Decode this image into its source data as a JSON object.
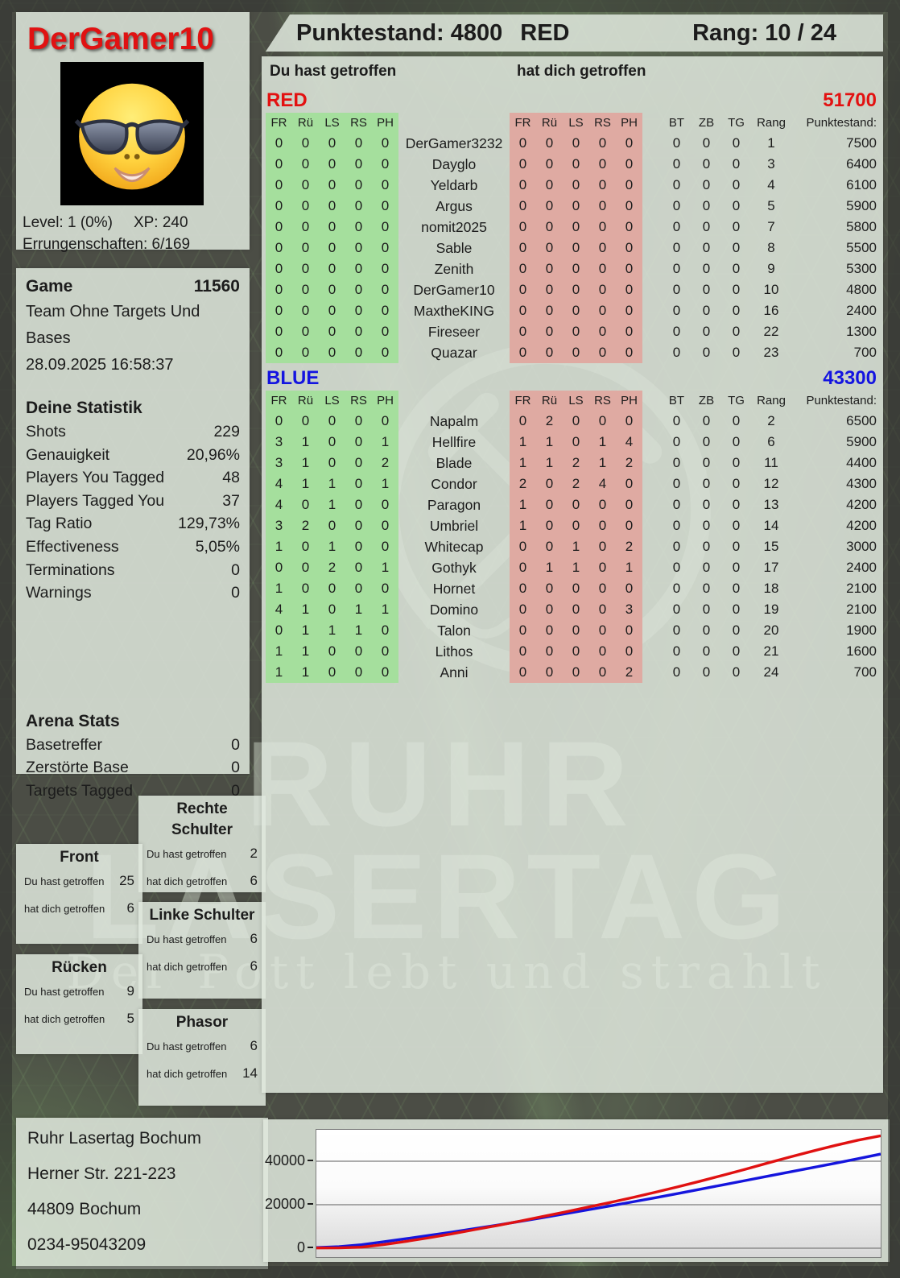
{
  "header": {
    "player_name": "DerGamer10",
    "points_label": "Punktestand: 4800",
    "team_label": "RED",
    "rank_label": "Rang: 10 / 24"
  },
  "profile": {
    "avatar_icon": "sunglasses-smiley-icon",
    "level_label": "Level: 1 (0%)",
    "xp_label": "XP: 240",
    "achievements_label": "Errungenschaften: 6/169"
  },
  "game_info": {
    "title": "Game",
    "number": "11560",
    "mode": "Team Ohne Targets Und Bases",
    "datetime": "28.09.2025 16:58:37"
  },
  "your_stats": {
    "title": "Deine Statistik",
    "rows": [
      {
        "label": "Shots",
        "value": "229"
      },
      {
        "label": "Genauigkeit",
        "value": "20,96%"
      },
      {
        "label": "Players You Tagged",
        "value": "48"
      },
      {
        "label": "Players Tagged You",
        "value": "37"
      },
      {
        "label": "Tag Ratio",
        "value": "129,73%"
      },
      {
        "label": "Effectiveness",
        "value": "5,05%"
      },
      {
        "label": "Terminations",
        "value": "0"
      },
      {
        "label": "Warnings",
        "value": "0"
      }
    ]
  },
  "arena_stats": {
    "title": "Arena Stats",
    "rows": [
      {
        "label": "Basetreffer",
        "value": "0"
      },
      {
        "label": "Zerstörte Base",
        "value": "0"
      },
      {
        "label": "Targets Tagged",
        "value": "0"
      }
    ]
  },
  "body_parts": {
    "hit_label": "Du hast getroffen",
    "got_label": "hat dich getroffen",
    "front": {
      "title": "Front",
      "hit": "25",
      "got": "6"
    },
    "ruecken": {
      "title": "Rücken",
      "hit": "9",
      "got": "5"
    },
    "rechte_schulter": {
      "title": "Rechte Schulter",
      "hit": "2",
      "got": "6"
    },
    "linke_schulter": {
      "title": "Linke Schulter",
      "hit": "6",
      "got": "6"
    },
    "phasor": {
      "title": "Phasor",
      "hit": "6",
      "got": "14"
    }
  },
  "scoreboard": {
    "you_hit_label": "Du hast getroffen",
    "hit_you_label": "hat dich getroffen",
    "hit_columns": [
      "FR",
      "Rü",
      "LS",
      "RS",
      "PH"
    ],
    "extra_columns": [
      "BT",
      "ZB",
      "TG",
      "Rang",
      "Punktestand:"
    ],
    "teams": [
      {
        "name": "RED",
        "color": "#e31111",
        "total": "51700",
        "players": [
          {
            "you_hit": [
              0,
              0,
              0,
              0,
              0
            ],
            "name": "DerGamer3232",
            "hit_you": [
              0,
              0,
              0,
              0,
              0
            ],
            "bt": 0,
            "zb": 0,
            "tg": 0,
            "rank": 1,
            "score": 7500
          },
          {
            "you_hit": [
              0,
              0,
              0,
              0,
              0
            ],
            "name": "Dayglo",
            "hit_you": [
              0,
              0,
              0,
              0,
              0
            ],
            "bt": 0,
            "zb": 0,
            "tg": 0,
            "rank": 3,
            "score": 6400
          },
          {
            "you_hit": [
              0,
              0,
              0,
              0,
              0
            ],
            "name": "Yeldarb",
            "hit_you": [
              0,
              0,
              0,
              0,
              0
            ],
            "bt": 0,
            "zb": 0,
            "tg": 0,
            "rank": 4,
            "score": 6100
          },
          {
            "you_hit": [
              0,
              0,
              0,
              0,
              0
            ],
            "name": "Argus",
            "hit_you": [
              0,
              0,
              0,
              0,
              0
            ],
            "bt": 0,
            "zb": 0,
            "tg": 0,
            "rank": 5,
            "score": 5900
          },
          {
            "you_hit": [
              0,
              0,
              0,
              0,
              0
            ],
            "name": "nomit2025",
            "hit_you": [
              0,
              0,
              0,
              0,
              0
            ],
            "bt": 0,
            "zb": 0,
            "tg": 0,
            "rank": 7,
            "score": 5800
          },
          {
            "you_hit": [
              0,
              0,
              0,
              0,
              0
            ],
            "name": "Sable",
            "hit_you": [
              0,
              0,
              0,
              0,
              0
            ],
            "bt": 0,
            "zb": 0,
            "tg": 0,
            "rank": 8,
            "score": 5500
          },
          {
            "you_hit": [
              0,
              0,
              0,
              0,
              0
            ],
            "name": "Zenith",
            "hit_you": [
              0,
              0,
              0,
              0,
              0
            ],
            "bt": 0,
            "zb": 0,
            "tg": 0,
            "rank": 9,
            "score": 5300
          },
          {
            "you_hit": [
              0,
              0,
              0,
              0,
              0
            ],
            "name": "DerGamer10",
            "hit_you": [
              0,
              0,
              0,
              0,
              0
            ],
            "bt": 0,
            "zb": 0,
            "tg": 0,
            "rank": 10,
            "score": 4800
          },
          {
            "you_hit": [
              0,
              0,
              0,
              0,
              0
            ],
            "name": "MaxtheKING",
            "hit_you": [
              0,
              0,
              0,
              0,
              0
            ],
            "bt": 0,
            "zb": 0,
            "tg": 0,
            "rank": 16,
            "score": 2400
          },
          {
            "you_hit": [
              0,
              0,
              0,
              0,
              0
            ],
            "name": "Fireseer",
            "hit_you": [
              0,
              0,
              0,
              0,
              0
            ],
            "bt": 0,
            "zb": 0,
            "tg": 0,
            "rank": 22,
            "score": 1300
          },
          {
            "you_hit": [
              0,
              0,
              0,
              0,
              0
            ],
            "name": "Quazar",
            "hit_you": [
              0,
              0,
              0,
              0,
              0
            ],
            "bt": 0,
            "zb": 0,
            "tg": 0,
            "rank": 23,
            "score": 700
          }
        ]
      },
      {
        "name": "BLUE",
        "color": "#1414e0",
        "total": "43300",
        "players": [
          {
            "you_hit": [
              0,
              0,
              0,
              0,
              0
            ],
            "name": "Napalm",
            "hit_you": [
              0,
              2,
              0,
              0,
              0
            ],
            "bt": 0,
            "zb": 0,
            "tg": 0,
            "rank": 2,
            "score": 6500
          },
          {
            "you_hit": [
              3,
              1,
              0,
              0,
              1
            ],
            "name": "Hellfire",
            "hit_you": [
              1,
              1,
              0,
              1,
              4
            ],
            "bt": 0,
            "zb": 0,
            "tg": 0,
            "rank": 6,
            "score": 5900
          },
          {
            "you_hit": [
              3,
              1,
              0,
              0,
              2
            ],
            "name": "Blade",
            "hit_you": [
              1,
              1,
              2,
              1,
              2
            ],
            "bt": 0,
            "zb": 0,
            "tg": 0,
            "rank": 11,
            "score": 4400
          },
          {
            "you_hit": [
              4,
              1,
              1,
              0,
              1
            ],
            "name": "Condor",
            "hit_you": [
              2,
              0,
              2,
              4,
              0
            ],
            "bt": 0,
            "zb": 0,
            "tg": 0,
            "rank": 12,
            "score": 4300
          },
          {
            "you_hit": [
              4,
              0,
              1,
              0,
              0
            ],
            "name": "Paragon",
            "hit_you": [
              1,
              0,
              0,
              0,
              0
            ],
            "bt": 0,
            "zb": 0,
            "tg": 0,
            "rank": 13,
            "score": 4200
          },
          {
            "you_hit": [
              3,
              2,
              0,
              0,
              0
            ],
            "name": "Umbriel",
            "hit_you": [
              1,
              0,
              0,
              0,
              0
            ],
            "bt": 0,
            "zb": 0,
            "tg": 0,
            "rank": 14,
            "score": 4200
          },
          {
            "you_hit": [
              1,
              0,
              1,
              0,
              0
            ],
            "name": "Whitecap",
            "hit_you": [
              0,
              0,
              1,
              0,
              2
            ],
            "bt": 0,
            "zb": 0,
            "tg": 0,
            "rank": 15,
            "score": 3000
          },
          {
            "you_hit": [
              0,
              0,
              2,
              0,
              1
            ],
            "name": "Gothyk",
            "hit_you": [
              0,
              1,
              1,
              0,
              1
            ],
            "bt": 0,
            "zb": 0,
            "tg": 0,
            "rank": 17,
            "score": 2400
          },
          {
            "you_hit": [
              1,
              0,
              0,
              0,
              0
            ],
            "name": "Hornet",
            "hit_you": [
              0,
              0,
              0,
              0,
              0
            ],
            "bt": 0,
            "zb": 0,
            "tg": 0,
            "rank": 18,
            "score": 2100
          },
          {
            "you_hit": [
              4,
              1,
              0,
              1,
              1
            ],
            "name": "Domino",
            "hit_you": [
              0,
              0,
              0,
              0,
              3
            ],
            "bt": 0,
            "zb": 0,
            "tg": 0,
            "rank": 19,
            "score": 2100
          },
          {
            "you_hit": [
              0,
              1,
              1,
              1,
              0
            ],
            "name": "Talon",
            "hit_you": [
              0,
              0,
              0,
              0,
              0
            ],
            "bt": 0,
            "zb": 0,
            "tg": 0,
            "rank": 20,
            "score": 1900
          },
          {
            "you_hit": [
              1,
              1,
              0,
              0,
              0
            ],
            "name": "Lithos",
            "hit_you": [
              0,
              0,
              0,
              0,
              0
            ],
            "bt": 0,
            "zb": 0,
            "tg": 0,
            "rank": 21,
            "score": 1600
          },
          {
            "you_hit": [
              1,
              1,
              0,
              0,
              0
            ],
            "name": "Anni",
            "hit_you": [
              0,
              0,
              0,
              0,
              2
            ],
            "bt": 0,
            "zb": 0,
            "tg": 0,
            "rank": 24,
            "score": 700
          }
        ]
      }
    ]
  },
  "address": {
    "line1": "Ruhr Lasertag Bochum",
    "line2": "Herner Str. 221-223",
    "line3": "44809 Bochum",
    "line4": "0234-95043209"
  },
  "watermark": {
    "title_line1": "RUHR",
    "title_line2": "LASERTAG",
    "slogan": "Der Pott lebt und strahlt",
    "logo_icon": "crossed-hammer-pick-icon"
  },
  "colors": {
    "red": "#e31111",
    "blue": "#1414e0",
    "green_cell": "#a5df9d",
    "pink_cell": "#dfaaa2"
  },
  "chart_data": {
    "type": "line",
    "title": "",
    "xlabel": "",
    "ylabel": "",
    "x_note": "cumulative team score over game time, evenly spaced samples",
    "ylim": [
      0,
      55000
    ],
    "grid": true,
    "legend_position": "none",
    "yticks": [
      {
        "v": 0,
        "label": "0"
      },
      {
        "v": 20000,
        "label": "20000"
      },
      {
        "v": 40000,
        "label": "40000"
      }
    ],
    "series": [
      {
        "name": "RED",
        "color": "#e01111",
        "values": [
          100,
          150,
          500,
          1700,
          3200,
          4800,
          6600,
          8500,
          10400,
          12400,
          14500,
          16600,
          18800,
          21000,
          23300,
          25700,
          28200,
          30800,
          33500,
          36300,
          39200,
          42000,
          44700,
          47300,
          49700,
          51700
        ]
      },
      {
        "name": "BLUE",
        "color": "#1515dd",
        "values": [
          300,
          700,
          1600,
          3000,
          4400,
          5900,
          7400,
          9000,
          10600,
          12300,
          14000,
          15800,
          17600,
          19400,
          21300,
          23200,
          25100,
          27100,
          29100,
          31100,
          33100,
          35100,
          37100,
          39100,
          41200,
          43300
        ]
      }
    ]
  }
}
